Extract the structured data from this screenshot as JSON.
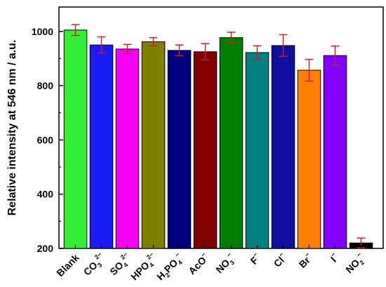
{
  "chart_data": {
    "type": "bar",
    "title": "",
    "xlabel": "",
    "ylabel": "Relative intensity at 546 nm / a.u.",
    "ylim": [
      200,
      1090
    ],
    "yticks": [
      200,
      400,
      600,
      800,
      1000
    ],
    "grid": false,
    "legend": "none",
    "categories": [
      {
        "base": "Blank"
      },
      {
        "base": "CO",
        "sub": "3",
        "sup": "2−"
      },
      {
        "base": "SO",
        "sub": "4",
        "sup": "2−"
      },
      {
        "base": "HPO",
        "sub": "4",
        "sup": "2−"
      },
      {
        "base": "H",
        "sub": "2",
        "mid": "PO",
        "sub2": "4",
        "sup": "−"
      },
      {
        "base": "AcO",
        "sup": "−"
      },
      {
        "base": "NO",
        "sub": "3",
        "sup": "−"
      },
      {
        "base": "F",
        "sup": "−"
      },
      {
        "base": "Cl",
        "sup": "−"
      },
      {
        "base": "Br",
        "sup": "−"
      },
      {
        "base": "I",
        "sup": "−"
      },
      {
        "base": "NO",
        "sub": "2",
        "sup": "−"
      }
    ],
    "values": [
      1005,
      950,
      935,
      962,
      930,
      925,
      977,
      922,
      948,
      857,
      911,
      220
    ],
    "errors": [
      20,
      30,
      17,
      15,
      20,
      30,
      20,
      25,
      40,
      40,
      35,
      18
    ],
    "colors": [
      "#33EE33",
      "#1A1AF5",
      "#F500F5",
      "#808000",
      "#000080",
      "#800000",
      "#008000",
      "#008080",
      "#0F0FA0",
      "#FF8000",
      "#8000FF",
      "#000000"
    ],
    "error_color": "#CC2020",
    "bar_edge_color": "#000000"
  }
}
